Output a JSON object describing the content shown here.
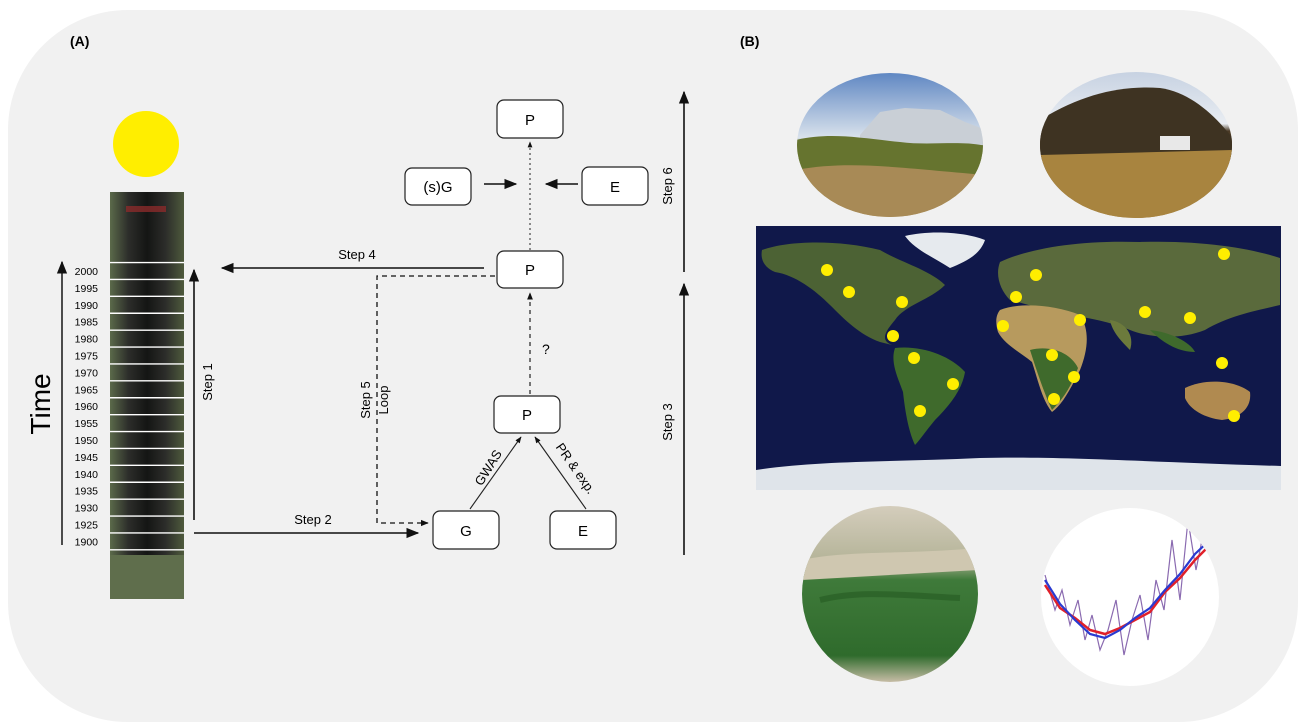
{
  "panels": {
    "a": "(A)",
    "b": "(B)"
  },
  "time_label": "Time",
  "years": [
    "2000",
    "1995",
    "1990",
    "1985",
    "1980",
    "1975",
    "1970",
    "1965",
    "1960",
    "1955",
    "1950",
    "1945",
    "1940",
    "1935",
    "1930",
    "1925",
    "1900"
  ],
  "nodes": {
    "p_top": "P",
    "sg": "(s)G",
    "e_top": "E",
    "p_mid": "P",
    "p_low": "P",
    "g": "G",
    "e_bottom": "E"
  },
  "steps": {
    "step1": "Step 1",
    "step2": "Step 2",
    "step3": "Step 3",
    "step4": "Step 4",
    "step5": "Step 5",
    "loop": "Loop",
    "step6": "Step 6"
  },
  "edge_labels": {
    "gwas": "GWAS",
    "pr_exp": "PR & exp.",
    "question": "?"
  },
  "colors": {
    "sun": "#ffee00",
    "marker": "#ffee00",
    "ocean": "#10184a",
    "panel_bg": "#f1f1f1"
  }
}
